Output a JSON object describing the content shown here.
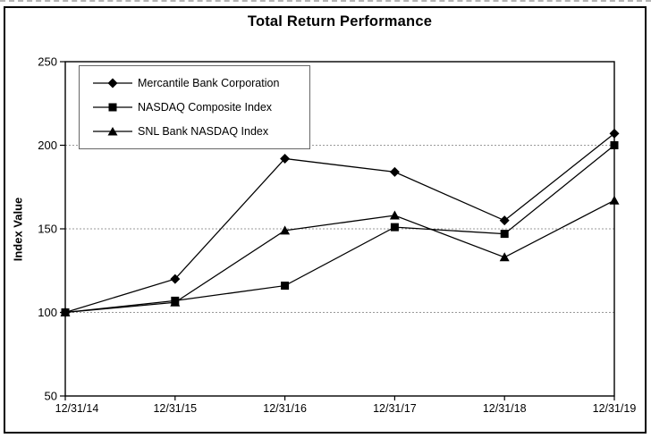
{
  "chart_data": {
    "type": "line",
    "title": "Total Return Performance",
    "ylabel": "Index Value",
    "xlabel": "",
    "categories": [
      "12/31/14",
      "12/31/15",
      "12/31/16",
      "12/31/17",
      "12/31/18",
      "12/31/19"
    ],
    "series": [
      {
        "name": "Mercantile Bank Corporation",
        "marker": "diamond",
        "values": [
          100,
          120,
          192,
          184,
          155,
          207
        ]
      },
      {
        "name": "NASDAQ Composite Index",
        "marker": "square",
        "values": [
          100,
          107,
          116,
          151,
          147,
          200
        ]
      },
      {
        "name": "SNL Bank NASDAQ Index",
        "marker": "triangle",
        "values": [
          100,
          106,
          149,
          158,
          133,
          167
        ]
      }
    ],
    "ylim": [
      50,
      250
    ],
    "yticks": [
      250,
      200,
      150,
      100,
      50
    ],
    "grid": true,
    "grid_style": "dashed",
    "gridline_values": [
      200,
      150,
      100
    ],
    "legend_position": "top-left-inside",
    "colors": {
      "line": "#000000",
      "marker": "#000000",
      "axis": "#000000",
      "grid": "#999999",
      "legend_border": "#666666",
      "frame_border": "#000000",
      "background": "#ffffff"
    }
  }
}
